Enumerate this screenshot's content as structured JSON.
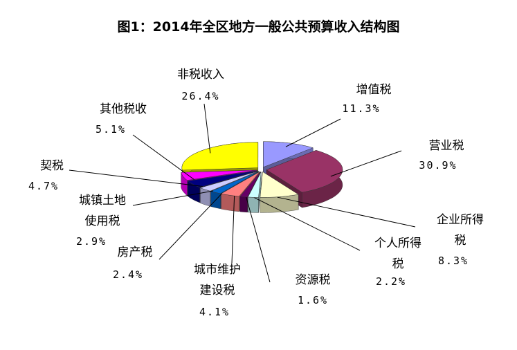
{
  "chart_data": {
    "type": "pie",
    "title": "图1：2014年全区地方一般公共预算收入结构图",
    "categories": [
      "增值税",
      "营业税",
      "企业所得税",
      "个人所得税",
      "资源税",
      "城市维护建设税",
      "房产税",
      "城镇土地使用税",
      "契税",
      "其他税收",
      "非税收入"
    ],
    "values": [
      11.3,
      30.9,
      8.3,
      2.2,
      1.6,
      4.1,
      2.4,
      2.9,
      4.7,
      5.1,
      26.4
    ],
    "value_labels": [
      "11.3%",
      "30.9%",
      "8.3%",
      "2.2%",
      "1.6%",
      "4.1%",
      "2.4%",
      "2.9%",
      "4.7%",
      "5.1%",
      "26.4%"
    ],
    "colors": [
      "#9999ff",
      "#993366",
      "#ffffcc",
      "#ccffff",
      "#660066",
      "#ff8080",
      "#0066cc",
      "#ccccff",
      "#000080",
      "#ff00ff",
      "#ffff00"
    ]
  }
}
